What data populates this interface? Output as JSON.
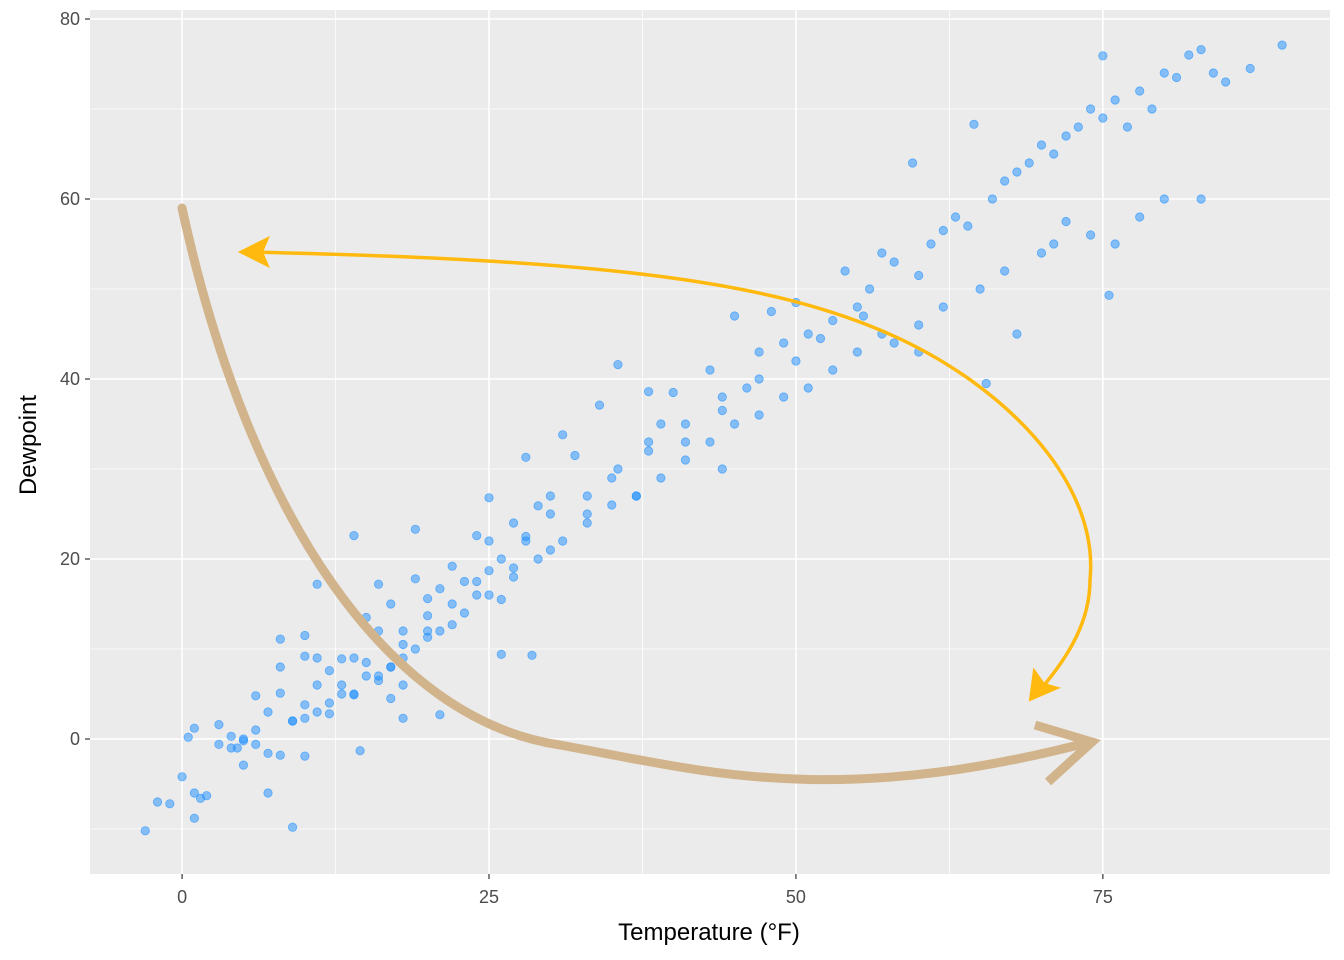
{
  "chart_data": {
    "type": "scatter",
    "title": "",
    "xlabel": "Temperature (°F)",
    "ylabel": "Dewpoint",
    "xlim": [
      -7.5,
      93.5
    ],
    "ylim": [
      -15,
      81
    ],
    "x_ticks": [
      0,
      25,
      50,
      75
    ],
    "x_tick_labels": [
      "0",
      "25",
      "50",
      "75"
    ],
    "y_ticks": [
      0,
      20,
      40,
      60,
      80
    ],
    "y_tick_labels": [
      "0",
      "20",
      "40",
      "60",
      "80"
    ],
    "grid": true,
    "panel_background": "#ebebeb",
    "point_color": "#1e90ff",
    "point_alpha": 0.5,
    "series": [
      {
        "x": [
          -3,
          -2,
          -1,
          0,
          1,
          1,
          1.5,
          2,
          3,
          4,
          4.5,
          5,
          5,
          6,
          6,
          7,
          7,
          8,
          8,
          8,
          8,
          9,
          10,
          10,
          10,
          10,
          10,
          11,
          11,
          12,
          12,
          13,
          13,
          14,
          14,
          14,
          14.5,
          15,
          15,
          16,
          16,
          16,
          17,
          17,
          17,
          18,
          18,
          18,
          18,
          19,
          19,
          20,
          20,
          20,
          21,
          21,
          22,
          22,
          23,
          24,
          24,
          25,
          25,
          25,
          26,
          26,
          27,
          27,
          28,
          28,
          28.5,
          29,
          30,
          30,
          31,
          32,
          33,
          34,
          35,
          35.5,
          37,
          38,
          38,
          39,
          40,
          41,
          43,
          44,
          44,
          45,
          46,
          47,
          48,
          49,
          50,
          51,
          53,
          54,
          55,
          56,
          57,
          58,
          59.5,
          60,
          61,
          62,
          63,
          64,
          64.5,
          66,
          67,
          68,
          69,
          70,
          71,
          72,
          73,
          74,
          75,
          75,
          76,
          77,
          78,
          79,
          80,
          81,
          82,
          83,
          84,
          85,
          87,
          89.6,
          71,
          75.5,
          68,
          65.5,
          60,
          58,
          55.5,
          52,
          50,
          47,
          44,
          41,
          38,
          35.5,
          33,
          30,
          28,
          26,
          24,
          22,
          20,
          18,
          16,
          14,
          12,
          11,
          9,
          7,
          6,
          5,
          4,
          3,
          1,
          0.5,
          80,
          83,
          78,
          76,
          74,
          72,
          70,
          67,
          65,
          62,
          60,
          57,
          55,
          53,
          51,
          49,
          47,
          45,
          43,
          41,
          39,
          37,
          35,
          33,
          31,
          29,
          27,
          25,
          23,
          21,
          19,
          17,
          15,
          13,
          11,
          9
        ],
        "y": [
          -10.2,
          -7,
          -7.2,
          -4.2,
          -6,
          -8.8,
          -6.6,
          -6.3,
          1.6,
          0.3,
          -1,
          -2.9,
          -0.2,
          -0.6,
          4.8,
          -1.6,
          -6,
          11.1,
          8,
          5.1,
          -1.8,
          -9.8,
          11.5,
          3.8,
          2.3,
          -1.9,
          9.2,
          17.2,
          9,
          7.6,
          2.8,
          8.9,
          6,
          4.9,
          22.6,
          9,
          -1.3,
          8.5,
          13.5,
          12,
          6.5,
          17.2,
          15,
          8,
          4.5,
          12,
          6,
          2.3,
          10.5,
          23.3,
          17.8,
          15.6,
          13.7,
          11.3,
          16.7,
          2.7,
          19.2,
          12.7,
          17.5,
          22.6,
          16,
          26.8,
          22,
          18.7,
          15.5,
          9.4,
          24,
          19,
          31.3,
          22.5,
          9.3,
          25.9,
          27,
          21,
          33.8,
          31.5,
          25,
          37.1,
          29,
          41.6,
          27,
          38.6,
          32,
          35,
          38.5,
          33,
          41,
          36.5,
          30,
          47,
          39,
          43,
          47.5,
          44,
          48.5,
          45,
          46.5,
          52,
          48,
          50,
          54,
          53,
          64,
          51.5,
          55,
          56.5,
          58,
          57,
          68.3,
          60,
          62,
          63,
          64,
          66,
          65,
          67,
          68,
          70,
          69,
          75.9,
          71,
          68,
          72,
          70,
          74,
          73.5,
          76,
          76.6,
          74,
          73,
          74.5,
          77.1,
          55,
          49.3,
          45,
          39.5,
          43,
          44,
          47,
          44.5,
          42,
          40,
          38,
          35,
          33,
          30,
          27,
          25,
          22,
          20,
          17.5,
          15,
          12,
          9,
          7,
          5,
          4,
          6,
          2,
          3,
          1,
          0,
          -1,
          -0.6,
          1.2,
          0.2,
          60,
          60,
          58,
          55,
          56,
          57.5,
          54,
          52,
          50,
          48,
          46,
          45,
          43,
          41,
          39,
          38,
          36,
          35,
          33,
          31,
          29,
          27,
          26,
          24,
          22,
          20,
          18,
          16,
          14,
          12,
          10,
          8,
          7,
          5,
          3,
          2
        ]
      }
    ],
    "annotations": [
      {
        "type": "arrow",
        "color": "#ffb90f",
        "from": [
          75,
          20
        ],
        "to": [
          5,
          55
        ]
      },
      {
        "type": "arrow",
        "color": "#ffb90f",
        "from": [
          45,
          57
        ],
        "to": [
          70,
          5
        ]
      },
      {
        "type": "arrow",
        "color": "#d2b48c",
        "from": [
          0,
          60
        ],
        "to": [
          75,
          0
        ]
      }
    ]
  }
}
